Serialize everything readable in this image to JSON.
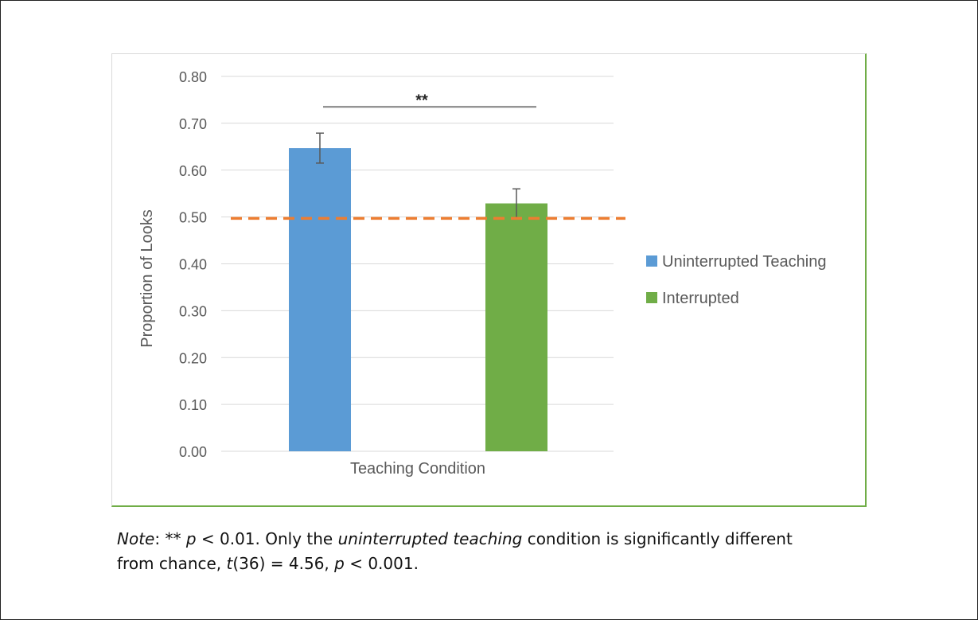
{
  "chart_data": {
    "type": "bar",
    "categories": [
      "Uninterrupted Teaching",
      "Interrupted"
    ],
    "values": [
      0.647,
      0.529
    ],
    "error": [
      0.032,
      0.031
    ],
    "colors": [
      "#5b9bd5",
      "#70ad47"
    ],
    "xlabel": "Teaching Condition",
    "ylabel": "Proportion of Looks",
    "ylim": [
      0,
      0.8
    ],
    "yticks": [
      "0.00",
      "0.10",
      "0.20",
      "0.30",
      "0.40",
      "0.50",
      "0.60",
      "0.70",
      "0.80"
    ],
    "chance_line": {
      "value": 0.497,
      "color": "#ed7d31",
      "style": "dashed"
    },
    "significance": {
      "label": "**",
      "y": 0.735
    },
    "legend": {
      "position": "right",
      "items": [
        {
          "label": "Uninterrupted Teaching",
          "color": "#5b9bd5"
        },
        {
          "label": "Interrupted",
          "color": "#70ad47"
        }
      ]
    },
    "grid": true
  },
  "note": {
    "lead": "Note",
    "colon": ":",
    "stars": " ** ",
    "p1": "p",
    "t1": " < 0.01. Only the ",
    "it1": "uninterrupted teaching",
    "t2": " condition is significantly different",
    "t3": "from chance, ",
    "it2": "t",
    "t4": "(36) = 4.56, ",
    "p2": "p",
    "t5": " < 0.001."
  }
}
